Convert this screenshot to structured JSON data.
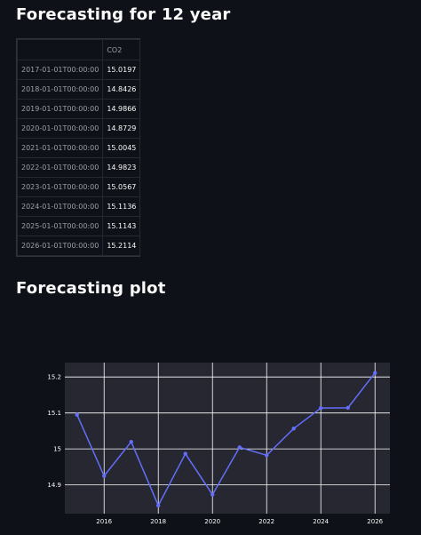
{
  "headings": {
    "forecast_title": "Forecasting for 12 year",
    "plot_title": "Forecasting plot"
  },
  "table": {
    "columns": [
      "",
      "CO2"
    ],
    "rows": [
      {
        "index": "2017-01-01T00:00:00",
        "value": "15.0197"
      },
      {
        "index": "2018-01-01T00:00:00",
        "value": "14.8426"
      },
      {
        "index": "2019-01-01T00:00:00",
        "value": "14.9866"
      },
      {
        "index": "2020-01-01T00:00:00",
        "value": "14.8729"
      },
      {
        "index": "2021-01-01T00:00:00",
        "value": "15.0045"
      },
      {
        "index": "2022-01-01T00:00:00",
        "value": "14.9823"
      },
      {
        "index": "2023-01-01T00:00:00",
        "value": "15.0567"
      },
      {
        "index": "2024-01-01T00:00:00",
        "value": "15.1136"
      },
      {
        "index": "2025-01-01T00:00:00",
        "value": "15.1143"
      },
      {
        "index": "2026-01-01T00:00:00",
        "value": "15.2114"
      }
    ]
  },
  "chart_data": {
    "type": "line",
    "title": "",
    "xlabel": "",
    "ylabel": "",
    "x": [
      2015,
      2016,
      2017,
      2018,
      2019,
      2020,
      2021,
      2022,
      2023,
      2024,
      2025,
      2026
    ],
    "series": [
      {
        "values": [
          15.095,
          14.925,
          15.0197,
          14.8426,
          14.9866,
          14.8729,
          15.0045,
          14.9823,
          15.0567,
          15.1136,
          15.1143,
          15.2114
        ],
        "color": "#636efa"
      }
    ],
    "xticks": [
      "2016",
      "2018",
      "2020",
      "2022",
      "2024",
      "2026"
    ],
    "yticks": [
      "14.9",
      "15",
      "15.1",
      "15.2"
    ],
    "xlim": [
      2014.55,
      2026.55
    ],
    "ylim": [
      14.82,
      15.24
    ],
    "grid": true,
    "plot_bg": "#262730",
    "grid_color": "#ffffff"
  }
}
